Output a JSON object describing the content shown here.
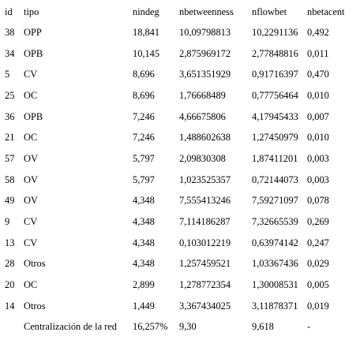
{
  "headers": [
    "id",
    "tipo",
    "nindeg",
    "nbetweenness",
    "nflowbet",
    "nbetacent"
  ],
  "rows": [
    [
      "38",
      "OPP",
      "18,841",
      "10,09798813",
      "10,2291136",
      "0,492"
    ],
    [
      "34",
      "OPB",
      "10,145",
      "2,875969172",
      "2,77848816",
      "0,011"
    ],
    [
      "5",
      "CV",
      "8,696",
      "3,651351929",
      "0,91716397",
      "0,470"
    ],
    [
      "25",
      "OC",
      "8,696",
      "1,76668489",
      "0,77756464",
      "0,010"
    ],
    [
      "36",
      "OPB",
      "7,246",
      "4,66675806",
      "4,17945433",
      "0,007"
    ],
    [
      "21",
      "OC",
      "7,246",
      "1,488602638",
      "1,27450979",
      "0,010"
    ],
    [
      "57",
      "OV",
      "5,797",
      "2,09830308",
      "1,87411201",
      "0,003"
    ],
    [
      "58",
      "OV",
      "5,797",
      "1,023525357",
      "0,72144073",
      "0,003"
    ],
    [
      "49",
      "OV",
      "4,348",
      "7,555413246",
      "7,59271097",
      "0,078"
    ],
    [
      "9",
      "CV",
      "4,348",
      "7,114186287",
      "7,32665539",
      "0,269"
    ],
    [
      "13",
      "CV",
      "4,348",
      "0,103012219",
      "0,63974142",
      "0,247"
    ],
    [
      "28",
      "Otros",
      "4,348",
      "1,257459521",
      "1,03367436",
      "0,029"
    ],
    [
      "20",
      "OC",
      "2,899",
      "1,278772354",
      "1,30008531",
      "0,005"
    ],
    [
      "14",
      "Otros",
      "1,449",
      "3,367434025",
      "3,11878371",
      "0,019"
    ]
  ],
  "summary": [
    "",
    "Centralización de la red",
    "16,257%",
    "9,30",
    "9,618",
    "-"
  ]
}
